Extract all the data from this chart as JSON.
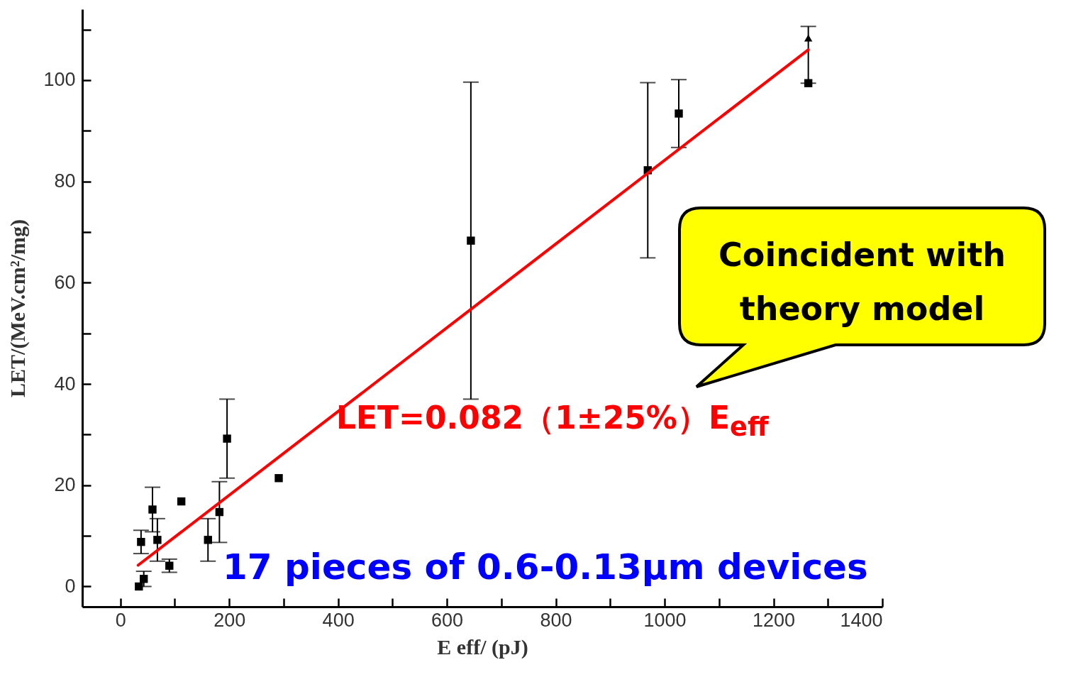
{
  "chart_data": {
    "type": "scatter",
    "xlabel": "E eff/ (pJ)",
    "ylabel": "LET/(MeV.cm²/mg)",
    "xlim": [
      -70,
      1400
    ],
    "ylim": [
      -4,
      114
    ],
    "xticks": [
      0,
      {
        "value": 100,
        "label": null
      },
      200,
      {
        "value": 300,
        "label": null
      },
      400,
      {
        "value": 500,
        "label": null
      },
      600,
      {
        "value": 700,
        "label": null
      },
      800,
      {
        "value": 900,
        "label": null
      },
      1000,
      {
        "value": 1100,
        "label": null
      },
      1200,
      {
        "value": 1300,
        "label": null
      },
      1400
    ],
    "yticks": [
      0,
      {
        "value": 10,
        "label": null
      },
      20,
      {
        "value": 30,
        "label": null
      },
      40,
      {
        "value": 50,
        "label": null
      },
      60,
      {
        "value": 70,
        "label": null
      },
      80,
      {
        "value": 90,
        "label": null
      },
      100,
      {
        "value": 110,
        "label": null
      }
    ],
    "grid": false,
    "series": [
      {
        "type": "scatter",
        "marker": "square",
        "color": "#000000",
        "x": [
          34,
          43,
          38,
          59,
          68,
          90,
          112,
          161,
          182,
          196,
          291,
          644,
          969,
          1026,
          1264
        ],
        "values": [
          0,
          1.5,
          8.8,
          15.2,
          9.2,
          4.1,
          16.8,
          9.2,
          14.7,
          29.2,
          21.4,
          68.3,
          82.2,
          93.4,
          99.4
        ],
        "errors": [
          null,
          1.5,
          2.3,
          4.4,
          4.2,
          1.3,
          null,
          4.2,
          6,
          7.8,
          null,
          31.3,
          17.3,
          6.7,
          [
            99.4,
            110.6
          ]
        ]
      },
      {
        "type": "scatter",
        "marker": "triangle",
        "color": "#000000",
        "x": [
          1264
        ],
        "values": [
          108.3
        ]
      },
      {
        "type": "line",
        "color": "#ff0000",
        "x": [
          32.6,
          1264
        ],
        "values": [
          4.2,
          106
        ]
      }
    ],
    "annotations": [
      "LET=0.082（1±25%）E$_{eff}$",
      "17 pieces of  0.6-0.13μm devices",
      "Coincident with theory model"
    ]
  }
}
